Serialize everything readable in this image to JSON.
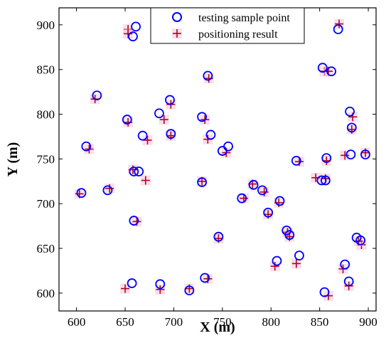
{
  "chart_data": {
    "type": "scatter",
    "xlabel": "X (m)",
    "ylabel": "Y (m)",
    "xlim": [
      582,
      908
    ],
    "ylim": [
      580,
      919
    ],
    "xticks": [
      600,
      650,
      700,
      750,
      800,
      850,
      900
    ],
    "yticks": [
      600,
      650,
      700,
      750,
      800,
      850,
      900
    ],
    "grid": false,
    "legend_position": "top-right",
    "colors": {
      "testing": "#0000ff",
      "positioning": "#b2001f"
    },
    "series": [
      {
        "name": "testing sample point",
        "marker": "circle",
        "points": [
          [
            661,
            898
          ],
          [
            658,
            887
          ],
          [
            869,
            895
          ],
          [
            853,
            852
          ],
          [
            862,
            848
          ],
          [
            735,
            843
          ],
          [
            621,
            821
          ],
          [
            696,
            816
          ],
          [
            881,
            803
          ],
          [
            685,
            801
          ],
          [
            652,
            794
          ],
          [
            729,
            797
          ],
          [
            883,
            785
          ],
          [
            668,
            776
          ],
          [
            697,
            778
          ],
          [
            738,
            777
          ],
          [
            610,
            764
          ],
          [
            756,
            764
          ],
          [
            750,
            759
          ],
          [
            882,
            755
          ],
          [
            897,
            755
          ],
          [
            826,
            748
          ],
          [
            857,
            751
          ],
          [
            659,
            736
          ],
          [
            664,
            736
          ],
          [
            605,
            712
          ],
          [
            632,
            715
          ],
          [
            729,
            724
          ],
          [
            852,
            726
          ],
          [
            856,
            726
          ],
          [
            782,
            721
          ],
          [
            791,
            715
          ],
          [
            770,
            706
          ],
          [
            809,
            703
          ],
          [
            797,
            690
          ],
          [
            659,
            681
          ],
          [
            816,
            670
          ],
          [
            819,
            665
          ],
          [
            888,
            662
          ],
          [
            892,
            659
          ],
          [
            746,
            663
          ],
          [
            829,
            642
          ],
          [
            806,
            636
          ],
          [
            876,
            632
          ],
          [
            732,
            617
          ],
          [
            880,
            613
          ],
          [
            657,
            611
          ],
          [
            686,
            610
          ],
          [
            716,
            603
          ],
          [
            855,
            601
          ]
        ]
      },
      {
        "name": "positioning result",
        "marker": "plus",
        "points": [
          [
            870,
            901
          ],
          [
            653,
            895
          ],
          [
            653,
            890
          ],
          [
            855,
            848
          ],
          [
            859,
            848
          ],
          [
            736,
            840
          ],
          [
            619,
            817
          ],
          [
            697,
            811
          ],
          [
            653,
            791
          ],
          [
            690,
            794
          ],
          [
            732,
            794
          ],
          [
            884,
            797
          ],
          [
            883,
            783
          ],
          [
            673,
            771
          ],
          [
            697,
            776
          ],
          [
            735,
            772
          ],
          [
            613,
            761
          ],
          [
            754,
            757
          ],
          [
            876,
            754
          ],
          [
            897,
            757
          ],
          [
            829,
            747
          ],
          [
            857,
            748
          ],
          [
            658,
            738
          ],
          [
            671,
            726
          ],
          [
            603,
            711
          ],
          [
            634,
            717
          ],
          [
            729,
            725
          ],
          [
            846,
            729
          ],
          [
            856,
            728
          ],
          [
            781,
            722
          ],
          [
            793,
            713
          ],
          [
            772,
            706
          ],
          [
            808,
            701
          ],
          [
            797,
            688
          ],
          [
            662,
            680
          ],
          [
            817,
            668
          ],
          [
            819,
            663
          ],
          [
            893,
            654
          ],
          [
            890,
            658
          ],
          [
            746,
            661
          ],
          [
            826,
            633
          ],
          [
            804,
            630
          ],
          [
            874,
            627
          ],
          [
            735,
            616
          ],
          [
            880,
            608
          ],
          [
            650,
            605
          ],
          [
            686,
            604
          ],
          [
            716,
            605
          ],
          [
            859,
            597
          ]
        ]
      }
    ]
  }
}
